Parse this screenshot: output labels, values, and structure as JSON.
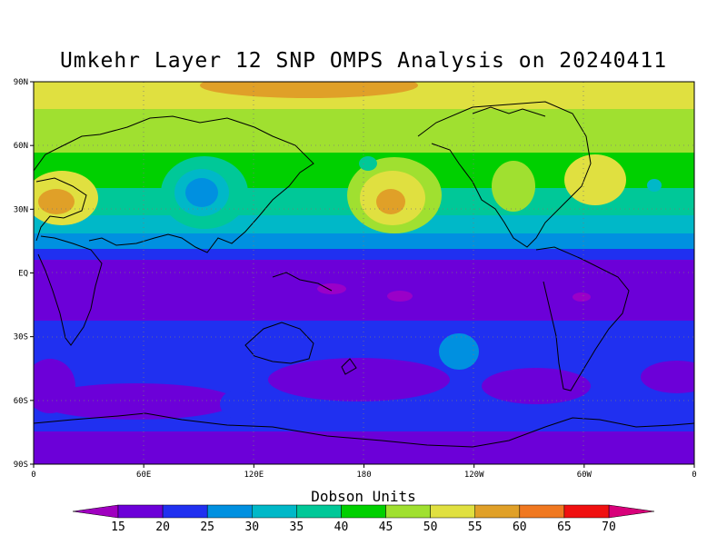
{
  "title": "Umkehr Layer 12 SNP OMPS Analysis on 20240411",
  "map": {
    "lat_ticks": [
      "90N",
      "60N",
      "30N",
      "EQ",
      "30S",
      "60S",
      "90S"
    ],
    "lon_ticks": [
      "0",
      "60E",
      "120E",
      "180",
      "120W",
      "60W",
      "0"
    ],
    "grid_lines": "dotted"
  },
  "colorbar": {
    "title": "Dobson Units",
    "levels": [
      "15",
      "20",
      "25",
      "30",
      "35",
      "40",
      "45",
      "50",
      "55",
      "60",
      "65",
      "70"
    ],
    "colors": [
      "#9a00c8",
      "#6c00d8",
      "#2030f0",
      "#0090e0",
      "#00b8c8",
      "#00c898",
      "#00d000",
      "#a0e030",
      "#e0e040",
      "#e0a028",
      "#f07820",
      "#f01010",
      "#d8007a"
    ],
    "under_color": "#a000c0",
    "over_color": "#d8007a"
  }
}
